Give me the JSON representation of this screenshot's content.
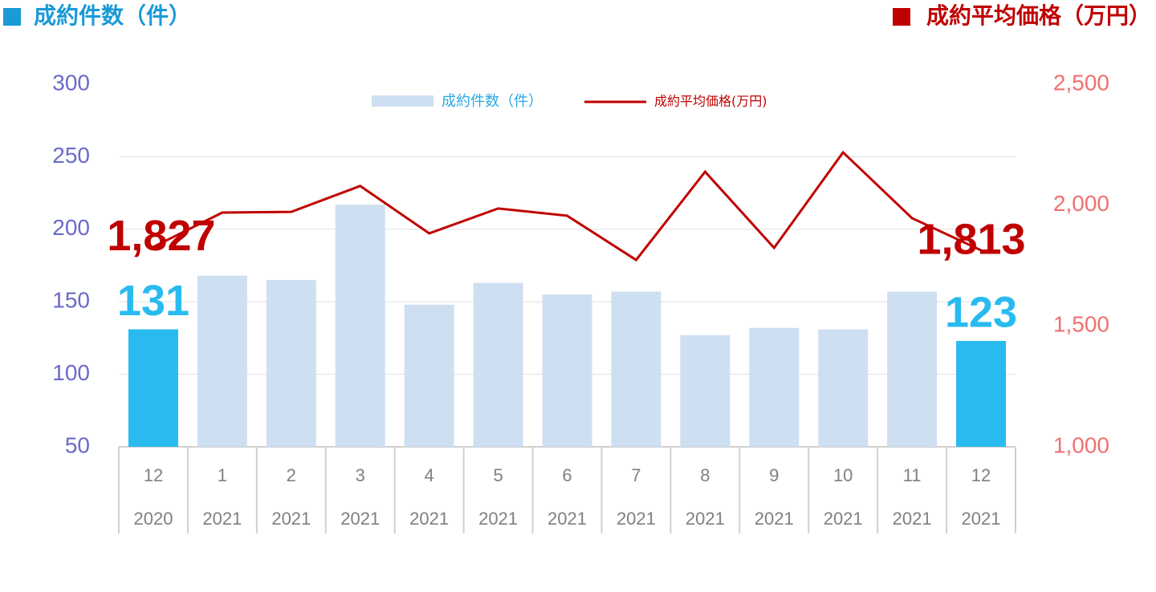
{
  "chart_data": {
    "type": "bar_line",
    "title_left": "成約件数（件）",
    "title_right": "成約平均価格（万円）",
    "categories": [
      [
        "12",
        "2020"
      ],
      [
        "1",
        "2021"
      ],
      [
        "2",
        "2021"
      ],
      [
        "3",
        "2021"
      ],
      [
        "4",
        "2021"
      ],
      [
        "5",
        "2021"
      ],
      [
        "6",
        "2021"
      ],
      [
        "7",
        "2021"
      ],
      [
        "8",
        "2021"
      ],
      [
        "9",
        "2021"
      ],
      [
        "10",
        "2021"
      ],
      [
        "11",
        "2021"
      ],
      [
        "12",
        "2021"
      ]
    ],
    "series": [
      {
        "name": "成約件数（件）",
        "type": "bar",
        "color": "#cfdff2",
        "colors": [
          "#29bbef",
          "#cfdff2",
          "#cfdff2",
          "#cfdff2",
          "#cfdff2",
          "#cfdff2",
          "#cfdff2",
          "#cfdff2",
          "#cfdff2",
          "#cfdff2",
          "#cfdff2",
          "#cfdff2",
          "#29bbef"
        ],
        "values": [
          131,
          168,
          165,
          217,
          148,
          163,
          155,
          157,
          127,
          132,
          131,
          157,
          123
        ],
        "value_labels": [
          "131",
          null,
          null,
          null,
          null,
          null,
          null,
          null,
          null,
          null,
          null,
          null,
          "123"
        ],
        "label_color": "#29bbef"
      },
      {
        "name": "成約平均価格(万円)",
        "type": "line",
        "axis": "y2",
        "color": "#c00000",
        "values": [
          1827,
          1969,
          1972,
          2079,
          1883,
          1986,
          1956,
          1773,
          2138,
          1823,
          2218,
          1946,
          1813
        ],
        "value_labels": [
          "1,827",
          null,
          null,
          null,
          null,
          null,
          null,
          null,
          null,
          null,
          null,
          null,
          "1,813"
        ],
        "label_color": "#c00000"
      }
    ],
    "ylim": [
      50,
      300
    ],
    "yticks": [
      50,
      100,
      150,
      200,
      250,
      300
    ],
    "y2lim": [
      1000,
      2500
    ],
    "y2ticks": [
      {
        "value": 1000,
        "label": "1,000"
      },
      {
        "value": 1500,
        "label": "1,500"
      },
      {
        "value": 2000,
        "label": "2,000"
      },
      {
        "value": 2500,
        "label": "2,500"
      }
    ],
    "grid": true,
    "legend": "top"
  }
}
